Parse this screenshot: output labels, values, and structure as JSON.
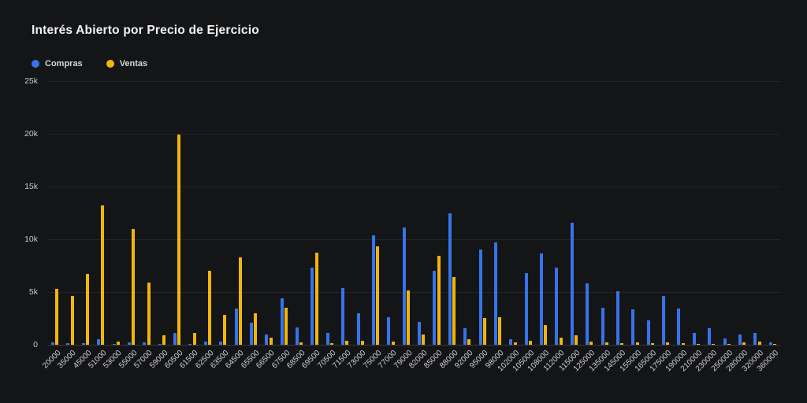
{
  "title": "Interés Abierto por Precio de Ejercicio",
  "legend": {
    "items": [
      {
        "label": "Compras",
        "color": "#3673EC"
      },
      {
        "label": "Ventas",
        "color": "#F2B60B"
      }
    ]
  },
  "colors": {
    "background": "#141517",
    "gridline": "#232327",
    "baseline": "#38383c",
    "title_text": "#f2f2f2",
    "axis_text": "#cdcdd0"
  },
  "chart_data": {
    "type": "bar",
    "title": "Interés Abierto por Precio de Ejercicio",
    "xlabel": "",
    "ylabel": "",
    "ylim": [
      0,
      25000
    ],
    "y_tick_step": 5000,
    "y_tick_labels": [
      "0",
      "5k",
      "10k",
      "15k",
      "20k",
      "25k"
    ],
    "grid": "horizontal",
    "legend_position": "top-left",
    "categories": [
      "20000",
      "35000",
      "45000",
      "51000",
      "53000",
      "55000",
      "57000",
      "59000",
      "60500",
      "61500",
      "62500",
      "63500",
      "64500",
      "65500",
      "66500",
      "67500",
      "68500",
      "69500",
      "70500",
      "71500",
      "73000",
      "75000",
      "77000",
      "79000",
      "82000",
      "85000",
      "88000",
      "92000",
      "95000",
      "98000",
      "102000",
      "105000",
      "108000",
      "112000",
      "115000",
      "125000",
      "135000",
      "145000",
      "155000",
      "165000",
      "175000",
      "190000",
      "210000",
      "230000",
      "250000",
      "280000",
      "320000",
      "360000"
    ],
    "series": [
      {
        "name": "Compras",
        "color": "#3673EC",
        "values": [
          200,
          150,
          150,
          500,
          100,
          200,
          200,
          100,
          1100,
          100,
          300,
          300,
          3400,
          2100,
          1000,
          4400,
          1650,
          7300,
          1150,
          5350,
          3000,
          10400,
          2600,
          11100,
          2200,
          7000,
          12500,
          1550,
          9000,
          9700,
          500,
          6800,
          8650,
          7350,
          11600,
          5850,
          3500,
          5100,
          3350,
          2300,
          4650,
          3400,
          1150,
          1600,
          600,
          950,
          1100,
          200
        ]
      },
      {
        "name": "Ventas",
        "color": "#F2B60B",
        "values": [
          5300,
          4600,
          6700,
          13200,
          300,
          11000,
          5900,
          900,
          19900,
          1100,
          7000,
          2800,
          8300,
          3000,
          700,
          3500,
          250,
          8700,
          150,
          350,
          400,
          9300,
          300,
          5150,
          1000,
          8400,
          6400,
          500,
          2550,
          2600,
          200,
          400,
          1850,
          650,
          900,
          300,
          200,
          150,
          200,
          150,
          200,
          150,
          100,
          100,
          100,
          250,
          300,
          100
        ]
      }
    ]
  }
}
